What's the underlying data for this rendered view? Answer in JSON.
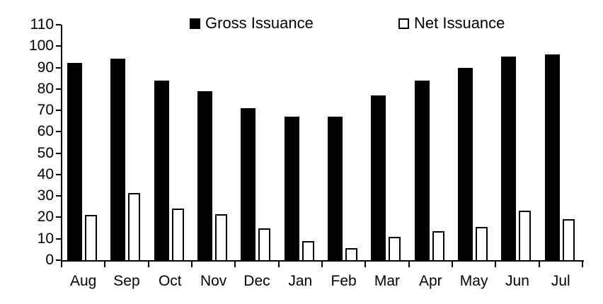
{
  "chart_data": {
    "type": "bar",
    "title": "",
    "xlabel": "",
    "ylabel": "",
    "categories": [
      "Aug",
      "Sep",
      "Oct",
      "Nov",
      "Dec",
      "Jan",
      "Feb",
      "Mar",
      "Apr",
      "May",
      "Jun",
      "Jul"
    ],
    "series": [
      {
        "name": "Gross Issuance",
        "values": [
          92,
          94,
          84,
          79,
          71,
          67,
          67,
          77,
          84,
          90,
          95,
          96
        ],
        "fill": "#000000"
      },
      {
        "name": "Net Issuance",
        "values": [
          21,
          31.5,
          24,
          21.5,
          15,
          9,
          5.5,
          11,
          13.5,
          15.5,
          23,
          19
        ],
        "fill": "#ffffff",
        "border": "#000000"
      }
    ],
    "y_ticks": [
      0,
      10,
      20,
      30,
      40,
      50,
      60,
      70,
      80,
      90,
      100,
      110
    ],
    "ylim": [
      0,
      110
    ],
    "grid": false,
    "legend_position": "top",
    "axis_color": "#000000",
    "background_color": "#ffffff"
  }
}
